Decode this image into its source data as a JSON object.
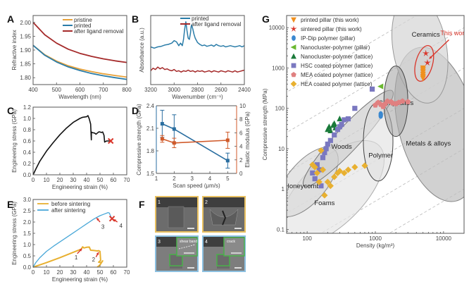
{
  "chart_data": [
    {
      "id": "A",
      "type": "line",
      "panel_label": "A",
      "xlabel": "Wavelength (nm)",
      "ylabel": "Refractive index",
      "xlim": [
        400,
        800
      ],
      "ylim": [
        1.775,
        2.025
      ],
      "xticks": [
        400,
        500,
        600,
        700,
        800
      ],
      "yticks": [
        1.8,
        1.85,
        1.9,
        1.95,
        2.0
      ],
      "ytick_labels": [
        "1.80",
        "1.85",
        "1.90",
        "1.95",
        "2.00"
      ],
      "legend_position": "top-right",
      "series": [
        {
          "name": "pristine",
          "color": "#e8a23a",
          "x": [
            400,
            450,
            500,
            550,
            600,
            650,
            700,
            750,
            800
          ],
          "y": [
            1.917,
            1.883,
            1.86,
            1.843,
            1.831,
            1.822,
            1.814,
            1.808,
            1.802
          ]
        },
        {
          "name": "printed",
          "color": "#2a7ca8",
          "x": [
            400,
            450,
            500,
            550,
            600,
            650,
            700,
            750,
            800
          ],
          "y": [
            1.917,
            1.881,
            1.857,
            1.839,
            1.826,
            1.815,
            1.807,
            1.8,
            1.794
          ]
        },
        {
          "name": "after ligand removal",
          "color": "#a52a2a",
          "x": [
            400,
            450,
            500,
            550,
            600,
            650,
            700,
            750,
            800
          ],
          "y": [
            2.0,
            1.955,
            1.925,
            1.903,
            1.888,
            1.877,
            1.868,
            1.861,
            1.855
          ]
        }
      ]
    },
    {
      "id": "B",
      "type": "line",
      "panel_label": "B",
      "xlabel": "Wavenumber (cm⁻¹)",
      "ylabel": "Absorbance (a.u.)",
      "xlim": [
        3200,
        2400
      ],
      "xticks": [
        3200,
        3000,
        2800,
        2600,
        2400
      ],
      "legend_position": "top-right",
      "series": [
        {
          "name": "printed",
          "color": "#2a7ca8",
          "x": [
            3200,
            3170,
            3140,
            3110,
            3080,
            3050,
            3020,
            3000,
            2980,
            2960,
            2945,
            2930,
            2920,
            2910,
            2900,
            2890,
            2880,
            2870,
            2860,
            2855,
            2850,
            2840,
            2830,
            2820,
            2800,
            2780,
            2760,
            2740,
            2720,
            2700,
            2680,
            2660,
            2640,
            2620,
            2600,
            2580,
            2560,
            2540,
            2520,
            2500,
            2480,
            2460,
            2440,
            2420,
            2400
          ],
          "y": [
            0.6,
            0.58,
            0.6,
            0.61,
            0.63,
            0.64,
            0.66,
            0.7,
            0.68,
            0.62,
            0.66,
            0.62,
            0.72,
            0.88,
            1.0,
            0.86,
            0.74,
            0.72,
            0.82,
            0.92,
            0.95,
            0.88,
            0.8,
            0.74,
            0.67,
            0.64,
            0.62,
            0.63,
            0.61,
            0.62,
            0.63,
            0.61,
            0.64,
            0.62,
            0.61,
            0.62,
            0.6,
            0.61,
            0.62,
            0.61,
            0.6,
            0.61,
            0.62,
            0.6,
            0.62
          ]
        },
        {
          "name": "after ligand removal",
          "color": "#a52a2a",
          "x": [
            3200,
            3180,
            3160,
            3140,
            3120,
            3100,
            3080,
            3060,
            3040,
            3020,
            3000,
            2980,
            2960,
            2940,
            2920,
            2900,
            2880,
            2860,
            2840,
            2820,
            2800,
            2780,
            2760,
            2740,
            2720,
            2700,
            2680,
            2660,
            2640,
            2620,
            2600,
            2580,
            2560,
            2540,
            2520,
            2500,
            2480,
            2460,
            2440,
            2420,
            2400
          ],
          "y": [
            0.22,
            0.26,
            0.24,
            0.28,
            0.25,
            0.27,
            0.24,
            0.25,
            0.23,
            0.22,
            0.24,
            0.21,
            0.22,
            0.2,
            0.22,
            0.21,
            0.23,
            0.21,
            0.22,
            0.2,
            0.22,
            0.21,
            0.22,
            0.2,
            0.21,
            0.22,
            0.2,
            0.22,
            0.21,
            0.2,
            0.22,
            0.21,
            0.2,
            0.22,
            0.21,
            0.2,
            0.22,
            0.2,
            0.21,
            0.22,
            0.23
          ]
        }
      ]
    },
    {
      "id": "C",
      "type": "line",
      "panel_label": "C",
      "xlabel": "Engineering strain (%)",
      "ylabel": "Engineering stress (GPa)",
      "xlim": [
        0,
        70
      ],
      "ylim": [
        0,
        1.2
      ],
      "xticks": [
        0,
        10,
        20,
        30,
        40,
        50,
        60,
        70
      ],
      "yticks": [
        0.0,
        0.2,
        0.4,
        0.6,
        0.8,
        1.0,
        1.2
      ],
      "ytick_labels": [
        "0.0",
        "0.2",
        "0.4",
        "0.6",
        "0.8",
        "1.0",
        "1.2"
      ],
      "series": [
        {
          "name": "stress-strain",
          "color": "#111111",
          "x": [
            0,
            2,
            5,
            10,
            15,
            20,
            25,
            30,
            35,
            37,
            40,
            41,
            42,
            43,
            43.5,
            43.6,
            44,
            46,
            47,
            48,
            49,
            50,
            51,
            52,
            53,
            53.5,
            54,
            55,
            56,
            57,
            58
          ],
          "y": [
            0,
            0.1,
            0.24,
            0.42,
            0.57,
            0.71,
            0.83,
            0.93,
            1.0,
            1.02,
            1.03,
            1.05,
            0.99,
            0.9,
            0.62,
            0.76,
            0.75,
            0.74,
            0.72,
            0.74,
            0.76,
            0.76,
            0.75,
            0.76,
            0.7,
            0.58,
            0.59,
            0.6,
            0.6,
            0.6,
            0.6
          ]
        }
      ],
      "fracture_marker": {
        "x": 58,
        "y": 0.6,
        "symbol": "x",
        "color": "#d9352a"
      }
    },
    {
      "id": "D",
      "type": "line",
      "panel_label": "D",
      "xlabel": "Scan speed (μm/s)",
      "ylabel_left": "Compressive strength (GPa)",
      "ylabel_right": "Elastic modulus (GPa)",
      "xlim": [
        1,
        5.5
      ],
      "xticks": [
        1,
        2,
        3,
        4,
        5
      ],
      "ylim_left": [
        1.5,
        2.4
      ],
      "yticks_left": [
        "1.5",
        "1.8",
        "2.1",
        "2.4"
      ],
      "ylim_right": [
        0,
        10
      ],
      "yticks_right": [
        0,
        2,
        4,
        6,
        8,
        10
      ],
      "series": [
        {
          "name": "Compressive strength",
          "axis": "left",
          "color": "#2a6ea0",
          "x": [
            1.33,
            2,
            5
          ],
          "y": [
            2.16,
            2.09,
            1.67
          ],
          "err": [
            0.18,
            0.19,
            0.1
          ]
        },
        {
          "name": "Elastic modulus",
          "axis": "right",
          "color": "#d05a2a",
          "x": [
            1.33,
            2,
            5
          ],
          "y": [
            5.1,
            4.5,
            4.9
          ],
          "err": [
            0.5,
            0.7,
            1.2
          ]
        }
      ]
    },
    {
      "id": "E",
      "type": "line",
      "panel_label": "E",
      "xlabel": "Engineering strain (%)",
      "ylabel": "Engineering stress (GPa)",
      "xlim": [
        0,
        70
      ],
      "ylim": [
        0,
        3.0
      ],
      "xticks": [
        0,
        10,
        20,
        30,
        40,
        50,
        60,
        70
      ],
      "yticks": [
        0.0,
        0.5,
        1.0,
        1.5,
        2.0,
        2.5,
        3.0
      ],
      "ytick_labels": [
        "0.0",
        "0.5",
        "1.0",
        "1.5",
        "2.0",
        "2.5",
        "3.0"
      ],
      "legend_position": "top-left",
      "series": [
        {
          "name": "before sintering",
          "color": "#e8b030",
          "x": [
            0,
            5,
            10,
            20,
            30,
            36,
            37,
            38,
            40,
            42,
            43,
            45,
            48,
            49,
            50,
            50.5,
            49,
            51,
            52,
            50,
            48
          ],
          "y": [
            0,
            0.1,
            0.2,
            0.42,
            0.66,
            0.8,
            0.9,
            0.85,
            0.88,
            0.89,
            0.75,
            0.74,
            0.72,
            0.73,
            0.7,
            0.3,
            0.22,
            0.2,
            0.28,
            0.1,
            0.0
          ]
        },
        {
          "name": "after sintering",
          "color": "#4aa8d8",
          "x": [
            0,
            2,
            5,
            10,
            15,
            20,
            25,
            30,
            35,
            40,
            45,
            48,
            50,
            53,
            56,
            57,
            58,
            59
          ],
          "y": [
            0,
            0.2,
            0.42,
            0.7,
            0.92,
            1.12,
            1.32,
            1.52,
            1.72,
            1.92,
            2.12,
            2.22,
            2.28,
            2.35,
            2.42,
            2.4,
            2.25,
            2.15
          ]
        }
      ],
      "fracture_marker": {
        "x": 59,
        "y": 2.15,
        "symbol": "x",
        "color": "#d9352a"
      },
      "annotations": [
        {
          "text": "1",
          "x": 37,
          "y": 0.85
        },
        {
          "text": "2",
          "x": 49,
          "y": 0.7
        },
        {
          "text": "3",
          "x": 48,
          "y": 2.2
        },
        {
          "text": "4",
          "x": 60,
          "y": 2.12
        }
      ]
    },
    {
      "id": "G",
      "type": "scatter",
      "panel_label": "G",
      "xlabel": "Density (kg/m³)",
      "ylabel": "Compressive strength (MPa)",
      "xscale": "log",
      "yscale": "log",
      "xlim": [
        50,
        20000
      ],
      "ylim": [
        0.08,
        20000
      ],
      "xticks": [
        100,
        1000,
        10000
      ],
      "xtick_labels": [
        "100",
        "1000",
        "10000"
      ],
      "yticks": [
        0.1,
        1,
        10,
        100,
        1000,
        10000
      ],
      "ytick_labels": [
        "0.1",
        "1",
        "10",
        "100",
        "1000",
        "10000"
      ],
      "legend_position": "top-left",
      "regions": [
        {
          "name": "Ceramics",
          "label_at": [
            5500,
            6000
          ]
        },
        {
          "name": "Composites",
          "label_at": [
            2000,
            120
          ]
        },
        {
          "name": "Metals & alloys",
          "label_at": [
            6000,
            12
          ]
        },
        {
          "name": "Polymer",
          "label_at": [
            1200,
            6
          ]
        },
        {
          "name": "Woods",
          "label_at": [
            320,
            10
          ]
        },
        {
          "name": "Honeycombs",
          "label_at": [
            90,
            1.05
          ]
        },
        {
          "name": "Foams",
          "label_at": [
            180,
            0.4
          ]
        }
      ],
      "annotation": {
        "text": "This work",
        "color": "#d9352a"
      },
      "series": [
        {
          "name": "printed pillar (this work)",
          "marker": "triangle-down",
          "color": "#f0901e",
          "x": [
            5000,
            5000,
            5000,
            5000,
            5000,
            5000
          ],
          "y": [
            1000,
            900,
            800,
            700,
            620,
            560
          ]
        },
        {
          "name": "sintered pillar (this work)",
          "marker": "star",
          "color": "#d9352a",
          "x": [
            5500,
            5800
          ],
          "y": [
            2300,
            1350
          ]
        },
        {
          "name": "IP-Dip polymer (pillar)",
          "marker": "circle",
          "color": "#3a88d0",
          "x": [
            1200,
            1200
          ],
          "y": [
            72,
            65
          ]
        },
        {
          "name": "Nanocluster-polymer (pillar)",
          "marker": "triangle-left",
          "color": "#6ab830",
          "x": [
            1200
          ],
          "y": [
            350
          ]
        },
        {
          "name": "Nanocluster-polymer (lattice)",
          "marker": "triangle-up",
          "color": "#1a7a3a",
          "x": [
            200,
            210,
            220,
            240,
            250,
            260,
            300
          ],
          "y": [
            30,
            35,
            28,
            38,
            42,
            33,
            55
          ]
        },
        {
          "name": "HSC coated polymer (lattice)",
          "marker": "square",
          "color": "#7a78c0",
          "x": [
            120,
            130,
            140,
            150,
            160,
            170,
            180,
            190,
            200,
            220,
            250,
            280,
            300,
            320,
            350,
            400,
            500,
            900
          ],
          "y": [
            2.5,
            1.8,
            4,
            3,
            1.2,
            6,
            8,
            10,
            13,
            16,
            22,
            30,
            35,
            40,
            52,
            55,
            100,
            300
          ]
        },
        {
          "name": "MEA coated polymer (lattice)",
          "marker": "pentagon",
          "color": "#e08080",
          "x": [
            1000,
            1100,
            1200,
            1300,
            1400,
            1500,
            1700,
            1800,
            2000,
            2200,
            2500,
            3000
          ],
          "y": [
            120,
            140,
            125,
            110,
            130,
            150,
            145,
            135,
            130,
            140,
            150,
            145
          ]
        },
        {
          "name": "HEA coated polymer (lattice)",
          "marker": "diamond",
          "color": "#e8b030",
          "x": [
            120,
            130,
            140,
            150,
            160,
            170,
            180,
            200,
            220,
            250,
            280,
            300,
            350,
            400,
            500,
            700
          ],
          "y": [
            4,
            3.5,
            2.5,
            1.5,
            9,
            3,
            0.7,
            1.5,
            1.2,
            2,
            2.5,
            2.8,
            2.5,
            3,
            3.5,
            3.8
          ]
        }
      ]
    }
  ],
  "panel_F": {
    "panel_label": "F",
    "images": [
      {
        "index": "1",
        "border_color": "#e8c060"
      },
      {
        "index": "2",
        "border_color": "#e8c060"
      },
      {
        "index": "3",
        "border_color": "#8cc0e0",
        "inset_label": "shear band"
      },
      {
        "index": "4",
        "border_color": "#8cc0e0",
        "inset_label": "crack"
      }
    ]
  }
}
